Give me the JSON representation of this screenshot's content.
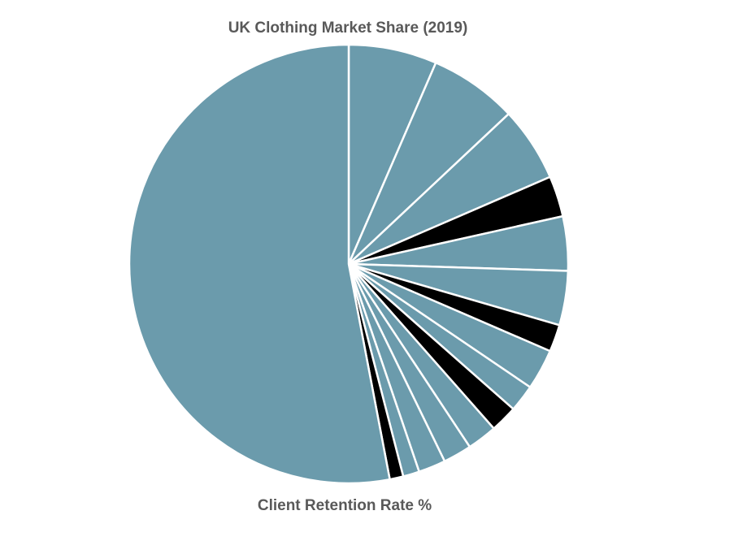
{
  "chart_data": {
    "type": "pie",
    "title": "UK Clothing Market Share (2019)",
    "caption": "Client Retention Rate %",
    "start_angle_deg": 0,
    "direction": "clockwise",
    "legend": "none",
    "colors": {
      "primary": "#6B9BAC",
      "highlight": "#000000",
      "border": "#FFFFFF",
      "text": "#595959"
    },
    "slices": [
      {
        "value": 6.5,
        "highlight": false
      },
      {
        "value": 6.5,
        "highlight": false
      },
      {
        "value": 5.5,
        "highlight": false
      },
      {
        "value": 3.0,
        "highlight": true
      },
      {
        "value": 4.0,
        "highlight": false
      },
      {
        "value": 4.0,
        "highlight": false
      },
      {
        "value": 2.0,
        "highlight": true
      },
      {
        "value": 3.0,
        "highlight": false
      },
      {
        "value": 2.0,
        "highlight": false
      },
      {
        "value": 2.0,
        "highlight": true
      },
      {
        "value": 2.2,
        "highlight": false
      },
      {
        "value": 2.1,
        "highlight": false
      },
      {
        "value": 2.0,
        "highlight": false
      },
      {
        "value": 1.2,
        "highlight": false
      },
      {
        "value": 1.0,
        "highlight": true
      },
      {
        "value": 53.0,
        "highlight": false
      }
    ]
  }
}
